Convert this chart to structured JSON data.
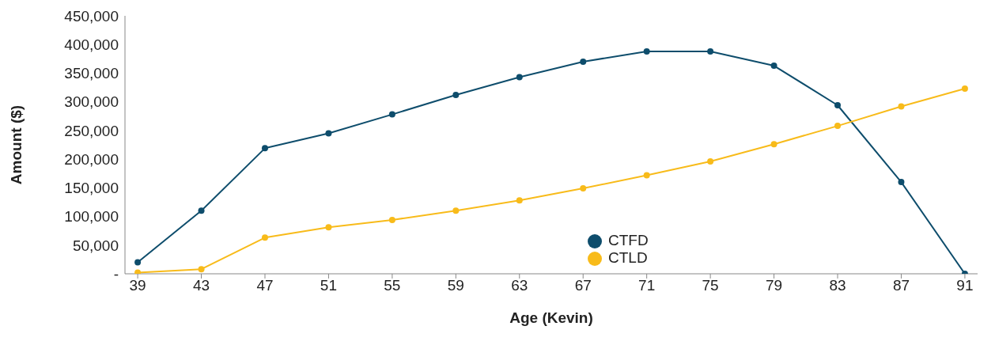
{
  "chart_data": {
    "type": "line",
    "xlabel": "Age (Kevin)",
    "ylabel": "Amount ($)",
    "x": [
      39,
      43,
      47,
      51,
      55,
      59,
      63,
      67,
      71,
      75,
      79,
      83,
      87,
      91
    ],
    "series": [
      {
        "name": "CTFD",
        "color": "#0e4d6c",
        "values": [
          20000,
          110000,
          219000,
          245000,
          278000,
          312000,
          343000,
          370000,
          388000,
          388000,
          363000,
          294000,
          160000,
          0
        ]
      },
      {
        "name": "CTLD",
        "color": "#f8bb1a",
        "values": [
          2000,
          8000,
          63000,
          81000,
          94000,
          110000,
          128000,
          149000,
          172000,
          196000,
          226000,
          258000,
          292000,
          323000
        ]
      }
    ],
    "xlim": [
      38.2,
      91.8
    ],
    "xticks": [
      39,
      43,
      47,
      51,
      55,
      59,
      63,
      67,
      71,
      75,
      79,
      83,
      87,
      91
    ],
    "ylim": [
      0,
      450000
    ],
    "yticks": [
      {
        "value": 0,
        "label": "-"
      },
      {
        "value": 50000,
        "label": "50,000"
      },
      {
        "value": 100000,
        "label": "100,000"
      },
      {
        "value": 150000,
        "label": "150,000"
      },
      {
        "value": 200000,
        "label": "200,000"
      },
      {
        "value": 250000,
        "label": "250,000"
      },
      {
        "value": 300000,
        "label": "300,000"
      },
      {
        "value": 350000,
        "label": "350,000"
      },
      {
        "value": 400000,
        "label": "400,000"
      },
      {
        "value": 450000,
        "label": "450,000"
      }
    ],
    "grid": false,
    "legend": "bottom",
    "marker": "circle",
    "line_style": "solid"
  }
}
